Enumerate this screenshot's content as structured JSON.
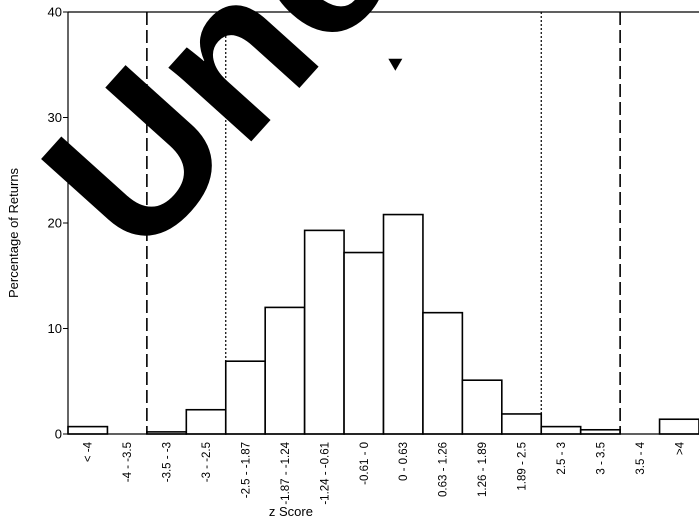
{
  "chart_data": {
    "type": "bar",
    "xlabel": "z Score",
    "ylabel": "Percentage of Returns",
    "ylim": [
      0,
      40
    ],
    "yticks": [
      0,
      10,
      20,
      30,
      40
    ],
    "categories": [
      "< -4",
      "-4 - -3.5",
      "-3.5 - -3",
      "-3 - -2.5",
      "-2.5 - -1.87",
      "-1.87 - -1.24",
      "-1.24 - -0.61",
      "-0.61 - 0",
      "0 - 0.63",
      "0.63 - 1.26",
      "1.26 - 1.89",
      "1.89 - 2.5",
      "2.5 - 3",
      "3 - 3.5",
      "3.5 - 4",
      ">4"
    ],
    "values": [
      0.7,
      0,
      0.2,
      2.3,
      6.9,
      12.0,
      19.3,
      17.2,
      20.8,
      11.5,
      5.1,
      1.9,
      0.7,
      0.4,
      0,
      1.4
    ],
    "reference_lines": [
      {
        "style": "dashed",
        "at_category_boundary": 2
      },
      {
        "style": "dotted",
        "at_category_boundary": 4
      },
      {
        "style": "dotted",
        "at_category_boundary": 12
      },
      {
        "style": "dashed",
        "at_category_boundary": 14
      }
    ],
    "marker": {
      "shape": "down-triangle",
      "at_category_boundary": 8,
      "y": 35
    },
    "grid": false,
    "watermark": {
      "text": "Unc",
      "color": "#000000"
    }
  }
}
